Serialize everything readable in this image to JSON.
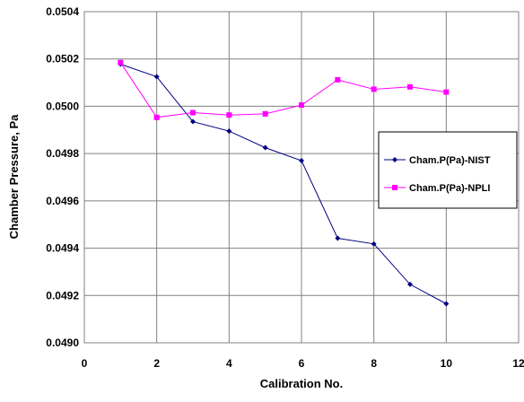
{
  "chart_data": {
    "type": "line",
    "title": "",
    "xlabel": "Calibration No.",
    "ylabel": "Chamber Pressure, Pa",
    "xlim": [
      0,
      12
    ],
    "ylim": [
      0.049,
      0.0504
    ],
    "x_ticks": [
      0,
      2,
      4,
      6,
      8,
      10,
      12
    ],
    "x_tick_labels": [
      "0",
      "2",
      "4",
      "6",
      "8",
      "10",
      "12"
    ],
    "y_ticks": [
      0.049,
      0.0492,
      0.0494,
      0.0496,
      0.0498,
      0.05,
      0.0502,
      0.0504
    ],
    "y_tick_labels": [
      "0.0490",
      "0.0492",
      "0.0494",
      "0.0496",
      "0.0498",
      "0.0500",
      "0.0502",
      "0.0504"
    ],
    "grid": true,
    "legend_position": "right",
    "x": [
      1,
      2,
      3,
      4,
      5,
      6,
      7,
      8,
      9,
      10
    ],
    "series": [
      {
        "name": "Cham.P(Pa)-NIST",
        "color": "#000080",
        "marker": "diamond",
        "values": [
          0.050178,
          0.050125,
          0.049935,
          0.049895,
          0.049825,
          0.04977,
          0.049442,
          0.049418,
          0.049247,
          0.049165
        ]
      },
      {
        "name": "Cham.P(Pa)-NPLI",
        "color": "#FF00FF",
        "marker": "square",
        "values": [
          0.050185,
          0.049953,
          0.049973,
          0.049963,
          0.049968,
          0.050005,
          0.050112,
          0.050072,
          0.050082,
          0.05006
        ]
      }
    ]
  }
}
